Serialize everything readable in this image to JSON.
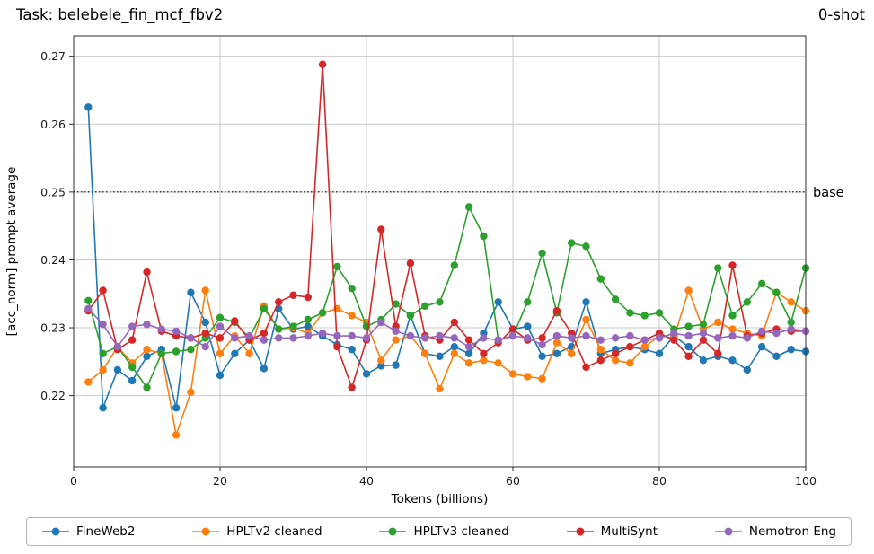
{
  "chart_data": {
    "type": "line",
    "title": "Task: belebele_fin_mcf_fbv2",
    "annotation": "0-shot",
    "xlabel": "Tokens (billions)",
    "ylabel": "[acc_norm] prompt average",
    "xlim": [
      0,
      100
    ],
    "ylim": [
      0.2095,
      0.273
    ],
    "xticks": [
      0,
      20,
      40,
      60,
      80,
      100
    ],
    "yticks": [
      0.22,
      0.23,
      0.24,
      0.25,
      0.26,
      0.27
    ],
    "grid": true,
    "legend_position": "bottom",
    "baseline": {
      "value": 0.25,
      "label": "base",
      "style": "dotted",
      "color": "#000000"
    },
    "x": [
      2,
      4,
      6,
      8,
      10,
      12,
      14,
      16,
      18,
      20,
      22,
      24,
      26,
      28,
      30,
      32,
      34,
      36,
      38,
      40,
      42,
      44,
      46,
      48,
      50,
      52,
      54,
      56,
      58,
      60,
      62,
      64,
      66,
      68,
      70,
      72,
      74,
      76,
      78,
      80,
      82,
      84,
      86,
      88,
      90,
      92,
      94,
      96,
      98,
      100
    ],
    "series": [
      {
        "name": "FineWeb2",
        "color": "#1f77b4",
        "values": [
          0.2625,
          0.2182,
          0.2238,
          0.2222,
          0.2258,
          0.2268,
          0.2182,
          0.2352,
          0.2308,
          0.223,
          0.2262,
          0.2282,
          0.224,
          0.2328,
          0.2298,
          0.2302,
          0.2288,
          0.2275,
          0.2268,
          0.2232,
          0.2244,
          0.2245,
          0.2318,
          0.2262,
          0.2258,
          0.2272,
          0.2262,
          0.2292,
          0.2338,
          0.2298,
          0.2302,
          0.2258,
          0.2262,
          0.2272,
          0.2338,
          0.2262,
          0.2268,
          0.2272,
          0.2268,
          0.2262,
          0.2288,
          0.2272,
          0.2252,
          0.2258,
          0.2252,
          0.2238,
          0.2272,
          0.2258,
          0.2268,
          0.2265
        ]
      },
      {
        "name": "HPLTv2 cleaned",
        "color": "#ff7f0e",
        "values": [
          0.222,
          0.2238,
          0.2272,
          0.2248,
          0.2268,
          0.2262,
          0.2142,
          0.2205,
          0.2355,
          0.2262,
          0.2288,
          0.2262,
          0.2332,
          0.2298,
          0.23,
          0.2292,
          0.2322,
          0.2328,
          0.2318,
          0.2308,
          0.2252,
          0.2282,
          0.2288,
          0.2262,
          0.221,
          0.2262,
          0.2248,
          0.2252,
          0.2248,
          0.2232,
          0.2228,
          0.2225,
          0.2278,
          0.2262,
          0.2312,
          0.2268,
          0.2252,
          0.2248,
          0.2272,
          0.2288,
          0.2285,
          0.2355,
          0.2298,
          0.2308,
          0.2298,
          0.2292,
          0.2288,
          0.2352,
          0.2338,
          0.2325
        ]
      },
      {
        "name": "HPLTv3 cleaned",
        "color": "#2ca02c",
        "values": [
          0.234,
          0.2262,
          0.2272,
          0.2242,
          0.2212,
          0.2262,
          0.2265,
          0.2268,
          0.2285,
          0.2315,
          0.2308,
          0.2285,
          0.2328,
          0.2298,
          0.2302,
          0.2312,
          0.2322,
          0.239,
          0.2358,
          0.2302,
          0.2312,
          0.2335,
          0.2318,
          0.2332,
          0.2338,
          0.2392,
          0.2478,
          0.2435,
          0.2282,
          0.2288,
          0.2338,
          0.241,
          0.2322,
          0.2425,
          0.242,
          0.2372,
          0.2342,
          0.2322,
          0.2318,
          0.2322,
          0.2298,
          0.2302,
          0.2305,
          0.2388,
          0.2318,
          0.2338,
          0.2365,
          0.2352,
          0.2308,
          0.2388
        ]
      },
      {
        "name": "MultiSynt",
        "color": "#d62728",
        "values": [
          0.2325,
          0.2355,
          0.2268,
          0.2282,
          0.2382,
          0.2295,
          0.2288,
          0.2285,
          0.2292,
          0.2285,
          0.231,
          0.2282,
          0.2292,
          0.2338,
          0.2348,
          0.2345,
          0.2688,
          0.2272,
          0.2212,
          0.2282,
          0.2445,
          0.2302,
          0.2395,
          0.2288,
          0.2282,
          0.2308,
          0.2282,
          0.2262,
          0.2278,
          0.2298,
          0.2282,
          0.2285,
          0.2325,
          0.2292,
          0.2242,
          0.2252,
          0.2262,
          0.2272,
          0.2282,
          0.2292,
          0.2282,
          0.2258,
          0.2282,
          0.2262,
          0.2392,
          0.2288,
          0.2292,
          0.2298,
          0.2295,
          0.2295
        ]
      },
      {
        "name": "Nemotron Eng",
        "color": "#9467bd",
        "values": [
          0.2328,
          0.2305,
          0.2272,
          0.2302,
          0.2305,
          0.2298,
          0.2295,
          0.2285,
          0.2272,
          0.2302,
          0.2285,
          0.2288,
          0.2282,
          0.2285,
          0.2285,
          0.2288,
          0.2292,
          0.2288,
          0.2288,
          0.2285,
          0.2308,
          0.2295,
          0.2288,
          0.2285,
          0.2288,
          0.2285,
          0.2272,
          0.2285,
          0.2282,
          0.2288,
          0.2285,
          0.2275,
          0.2288,
          0.2285,
          0.2288,
          0.2282,
          0.2285,
          0.2288,
          0.2282,
          0.2285,
          0.2292,
          0.2288,
          0.2292,
          0.2285,
          0.2288,
          0.2285,
          0.2295,
          0.2292,
          0.2298,
          0.2295
        ]
      }
    ]
  }
}
